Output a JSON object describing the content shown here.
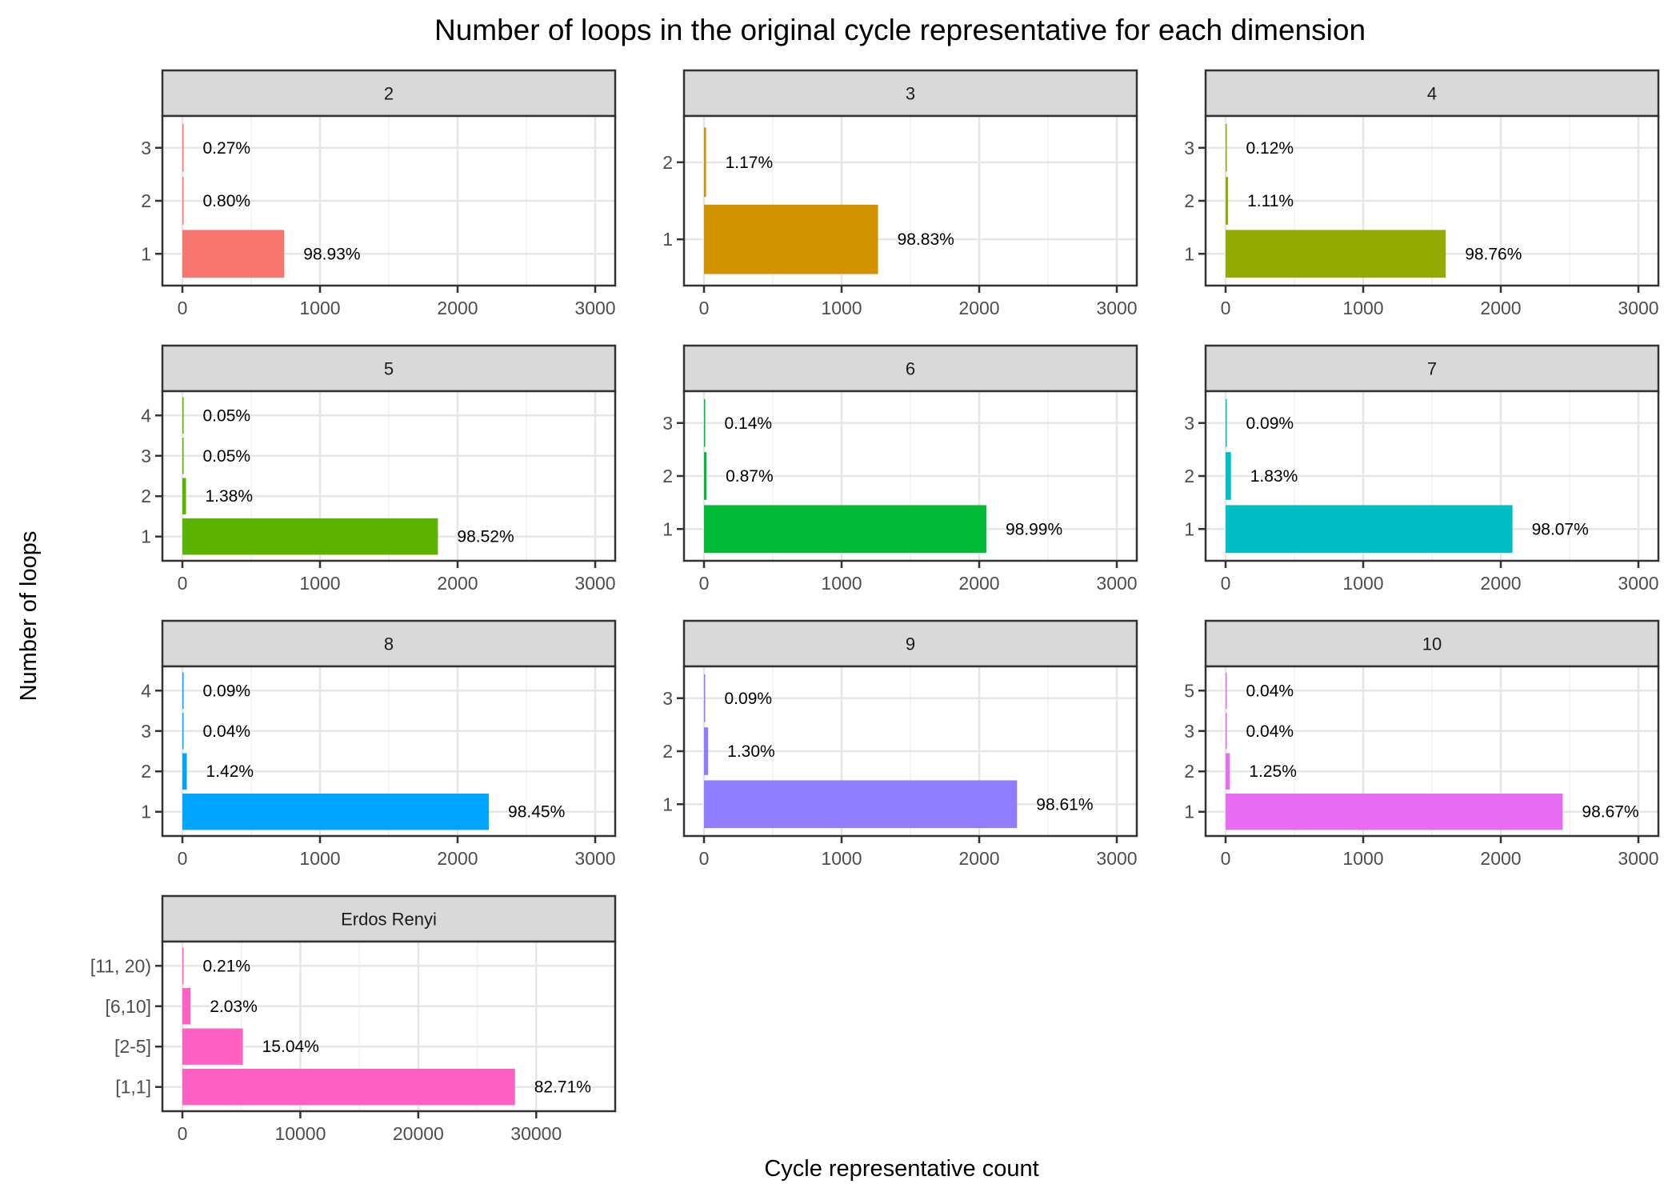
{
  "chart_data": {
    "type": "bar",
    "orientation": "horizontal",
    "title": "Number of loops in the original cycle representative for each dimension",
    "xlabel": "Cycle representative count",
    "ylabel": "Number of loops",
    "grid": true,
    "legend": "none",
    "panels": [
      {
        "name": "2",
        "color": "#F8766D",
        "xlim": [
          0,
          3000
        ],
        "x_ticks": [
          "0",
          "1000",
          "2000",
          "3000"
        ],
        "categories": [
          "1",
          "2",
          "3"
        ],
        "values": [
          740,
          6,
          2
        ],
        "labels": [
          "98.93%",
          "0.80%",
          "0.27%"
        ]
      },
      {
        "name": "3",
        "color": "#D39200",
        "xlim": [
          0,
          3000
        ],
        "x_ticks": [
          "0",
          "1000",
          "2000",
          "3000"
        ],
        "categories": [
          "1",
          "2"
        ],
        "values": [
          1265,
          15
        ],
        "labels": [
          "98.83%",
          "1.17%"
        ]
      },
      {
        "name": "4",
        "color": "#93AA00",
        "xlim": [
          0,
          3000
        ],
        "x_ticks": [
          "0",
          "1000",
          "2000",
          "3000"
        ],
        "categories": [
          "1",
          "2",
          "3"
        ],
        "values": [
          1600,
          18,
          2
        ],
        "labels": [
          "98.76%",
          "1.11%",
          "0.12%"
        ]
      },
      {
        "name": "5",
        "color": "#5BB300",
        "xlim": [
          0,
          3000
        ],
        "x_ticks": [
          "0",
          "1000",
          "2000",
          "3000"
        ],
        "categories": [
          "1",
          "2",
          "3",
          "4"
        ],
        "values": [
          1857,
          26,
          1,
          1
        ],
        "labels": [
          "98.52%",
          "1.38%",
          "0.05%",
          "0.05%"
        ]
      },
      {
        "name": "6",
        "color": "#00BA38",
        "xlim": [
          0,
          3000
        ],
        "x_ticks": [
          "0",
          "1000",
          "2000",
          "3000"
        ],
        "categories": [
          "1",
          "2",
          "3"
        ],
        "values": [
          2052,
          18,
          3
        ],
        "labels": [
          "98.99%",
          "0.87%",
          "0.14%"
        ]
      },
      {
        "name": "7",
        "color": "#00BFC4",
        "xlim": [
          0,
          3000
        ],
        "x_ticks": [
          "0",
          "1000",
          "2000",
          "3000"
        ],
        "categories": [
          "1",
          "2",
          "3"
        ],
        "values": [
          2085,
          39,
          2
        ],
        "labels": [
          "98.07%",
          "1.83%",
          "0.09%"
        ]
      },
      {
        "name": "8",
        "color": "#00A5FF",
        "xlim": [
          0,
          3000
        ],
        "x_ticks": [
          "0",
          "1000",
          "2000",
          "3000"
        ],
        "categories": [
          "1",
          "2",
          "3",
          "4"
        ],
        "values": [
          2227,
          32,
          1,
          2
        ],
        "labels": [
          "98.45%",
          "1.42%",
          "0.04%",
          "0.09%"
        ]
      },
      {
        "name": "9",
        "color": "#8F7CFF",
        "xlim": [
          0,
          3000
        ],
        "x_ticks": [
          "0",
          "1000",
          "2000",
          "3000"
        ],
        "categories": [
          "1",
          "2",
          "3"
        ],
        "values": [
          2275,
          30,
          2
        ],
        "labels": [
          "98.61%",
          "1.30%",
          "0.09%"
        ]
      },
      {
        "name": "10",
        "color": "#E76BF3",
        "xlim": [
          0,
          3000
        ],
        "x_ticks": [
          "0",
          "1000",
          "2000",
          "3000"
        ],
        "categories": [
          "1",
          "2",
          "3",
          "5"
        ],
        "values": [
          2450,
          31,
          1,
          1
        ],
        "labels": [
          "98.67%",
          "1.25%",
          "0.04%",
          "0.04%"
        ]
      },
      {
        "name": "Erdos Renyi",
        "color": "#FF61C3",
        "xlim": [
          0,
          35000
        ],
        "x_ticks": [
          "0",
          "10000",
          "20000",
          "30000"
        ],
        "categories": [
          "[1,1]",
          "[2-5]",
          "[6,10]",
          "[11, 20)"
        ],
        "values": [
          28200,
          5130,
          693,
          72
        ],
        "labels": [
          "82.71%",
          "15.04%",
          "2.03%",
          "0.21%"
        ]
      }
    ]
  }
}
